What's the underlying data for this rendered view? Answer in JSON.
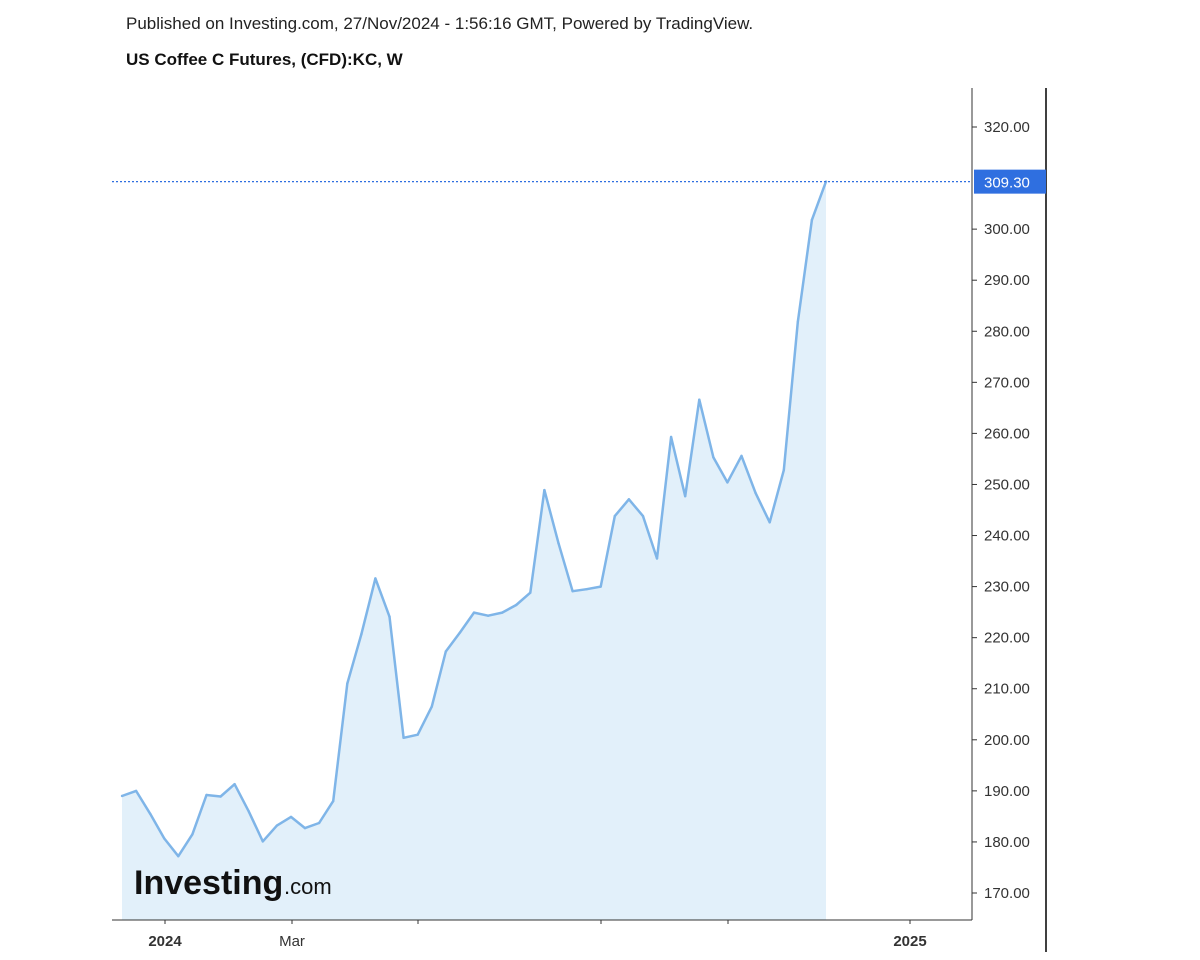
{
  "header": {
    "published": "Published on Investing.com, 27/Nov/2024 - 1:56:16 GMT, Powered by TradingView.",
    "symbol": "US Coffee C Futures, (CFD):KC, W"
  },
  "logo": {
    "main": "Investing",
    "domain": ".com"
  },
  "colors": {
    "line": "#7fb5e8",
    "fill": "#e2f0fa",
    "accent": "#2f6fe0",
    "axis": "#333333"
  },
  "chart_data": {
    "type": "area",
    "x_tick_labels": [
      "2024",
      "Mar",
      "",
      "",
      "",
      "2025"
    ],
    "y_tick_labels": [
      "320.00",
      "300.00",
      "290.00",
      "280.00",
      "270.00",
      "260.00",
      "250.00",
      "240.00",
      "230.00",
      "220.00",
      "210.00",
      "200.00",
      "190.00",
      "180.00",
      "170.00"
    ],
    "ylim": [
      164.5,
      327.5
    ],
    "last_price": 309.3,
    "last_price_label": "309.30",
    "grid": false,
    "series": [
      {
        "values": [
          189.0,
          190.0,
          185.5,
          180.7,
          177.2,
          181.5,
          189.2,
          188.9,
          191.3,
          186.0,
          180.1,
          183.2,
          184.9,
          182.7,
          183.7,
          188.0,
          211.0,
          220.7,
          231.6,
          224.1,
          200.4,
          201.0,
          206.5,
          217.3,
          221.0,
          224.9,
          224.3,
          224.9,
          226.4,
          228.8,
          248.9,
          238.5,
          229.1,
          229.5,
          230.0,
          243.8,
          247.1,
          243.8,
          235.5,
          259.3,
          247.7,
          266.6,
          255.3,
          250.4,
          255.6,
          248.3,
          242.6,
          252.8,
          281.8,
          301.8,
          309.3
        ]
      }
    ]
  }
}
